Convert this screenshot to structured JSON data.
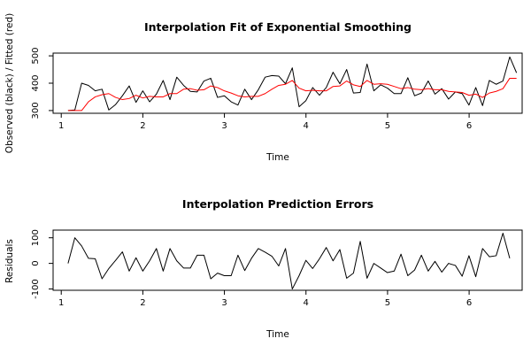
{
  "chart_data": [
    {
      "type": "line",
      "title": "Interpolation Fit of Exponential Smoothing",
      "xlabel": "Time",
      "ylabel": "Observed (black) / Fitted (red)",
      "xlim": [
        0.9,
        6.65
      ],
      "ylim": [
        290,
        510
      ],
      "x_ticks": [
        1,
        2,
        3,
        4,
        5,
        6
      ],
      "y_ticks": [
        300,
        400,
        500
      ],
      "x_start": 1.0833,
      "x_step": 0.0833,
      "series": [
        {
          "name": "Observed",
          "color": "#000000",
          "values": [
            300,
            302,
            400,
            392,
            372,
            378,
            302,
            322,
            354,
            390,
            330,
            372,
            332,
            360,
            410,
            340,
            422,
            392,
            370,
            368,
            408,
            418,
            348,
            354,
            332,
            320,
            378,
            340,
            376,
            422,
            428,
            426,
            398,
            456,
            314,
            336,
            384,
            356,
            384,
            440,
            398,
            450,
            364,
            366,
            470,
            372,
            394,
            382,
            362,
            362,
            420,
            354,
            364,
            408,
            360,
            380,
            342,
            368,
            362,
            320,
            384,
            318,
            410,
            396,
            408,
            496,
            438
          ]
        },
        {
          "name": "Fitted",
          "color": "#ff0000",
          "values": [
            300,
            300,
            300,
            332,
            350,
            358,
            362,
            348,
            340,
            344,
            356,
            346,
            352,
            350,
            350,
            362,
            362,
            378,
            380,
            374,
            376,
            390,
            384,
            372,
            364,
            354,
            350,
            352,
            352,
            362,
            378,
            392,
            396,
            410,
            382,
            372,
            374,
            372,
            372,
            388,
            390,
            408,
            394,
            388,
            410,
            396,
            398,
            396,
            388,
            380,
            384,
            378,
            376,
            380,
            376,
            376,
            370,
            368,
            366,
            356,
            360,
            348,
            364,
            370,
            380,
            418,
            418
          ]
        }
      ]
    },
    {
      "type": "line",
      "title": "Interpolation Prediction Errors",
      "xlabel": "Time",
      "ylabel": "Residuals",
      "xlim": [
        0.9,
        6.65
      ],
      "ylim": [
        -105,
        130
      ],
      "x_ticks": [
        1,
        2,
        3,
        4,
        5,
        6
      ],
      "y_ticks": [
        -100,
        0,
        100
      ],
      "x_start": 1.0833,
      "x_step": 0.0833,
      "series": [
        {
          "name": "Residuals",
          "color": "#000000",
          "values": [
            0,
            100,
            68,
            20,
            18,
            -60,
            -20,
            12,
            45,
            -30,
            22,
            -30,
            10,
            58,
            -30,
            58,
            10,
            -18,
            -18,
            32,
            32,
            -60,
            -38,
            -48,
            -48,
            32,
            -28,
            20,
            58,
            44,
            28,
            -10,
            58,
            -100,
            -48,
            12,
            -20,
            18,
            62,
            10,
            54,
            -58,
            -38,
            86,
            -58,
            0,
            -18,
            -36,
            -30,
            36,
            -48,
            -26,
            32,
            -30,
            8,
            -34,
            0,
            -8,
            -50,
            30,
            -52,
            58,
            26,
            30,
            118,
            20
          ]
        }
      ]
    }
  ]
}
